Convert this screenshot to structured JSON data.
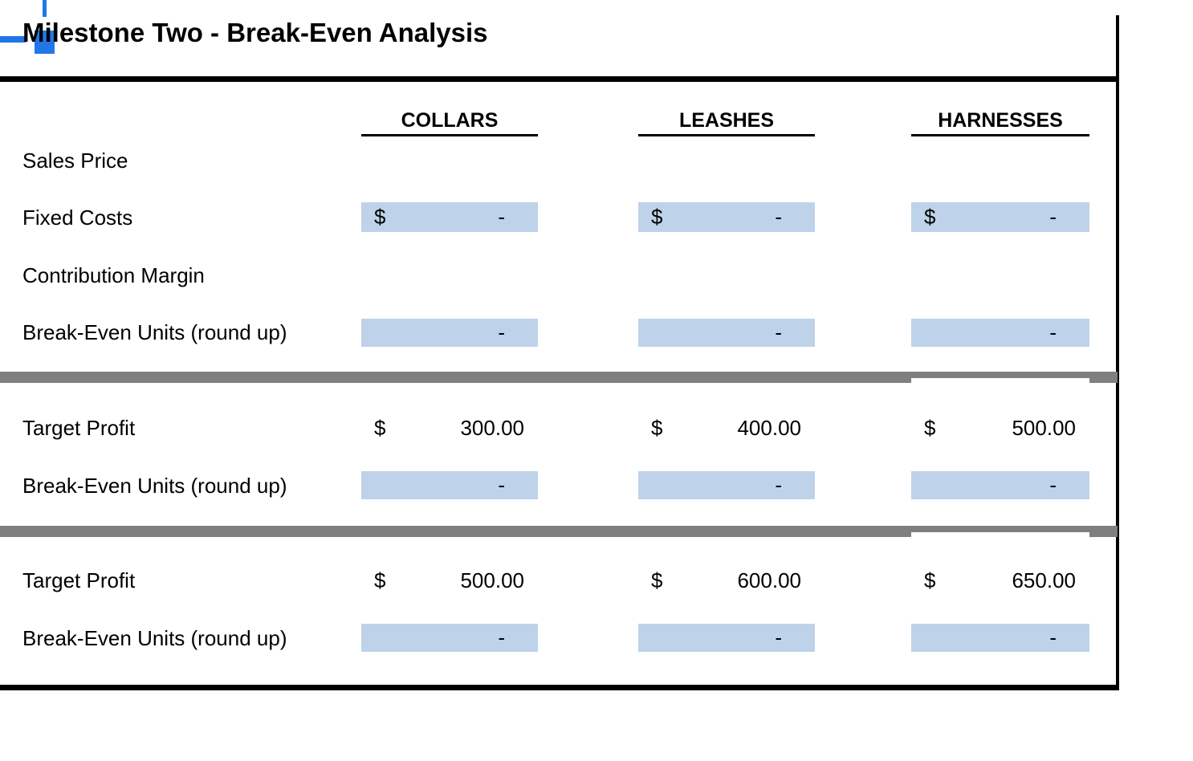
{
  "title": "Milestone Two - Break-Even Analysis",
  "currency": "$",
  "columns": [
    {
      "label": "COLLARS"
    },
    {
      "label": "LEASHES"
    },
    {
      "label": "HARNESSES"
    }
  ],
  "rows": {
    "sales_price": {
      "label": "Sales Price"
    },
    "fixed_costs": {
      "label": "Fixed Costs",
      "values": [
        "-",
        "-",
        "-"
      ]
    },
    "contribution_margin": {
      "label": "Contribution Margin"
    },
    "break_even_1": {
      "label": "Break-Even Units (round up)",
      "values": [
        "-",
        "-",
        "-"
      ]
    },
    "target_profit_1": {
      "label": "Target Profit",
      "values": [
        "300.00",
        "400.00",
        "500.00"
      ]
    },
    "break_even_2": {
      "label": "Break-Even Units (round up)",
      "values": [
        "-",
        "-",
        "-"
      ]
    },
    "target_profit_2": {
      "label": "Target Profit",
      "values": [
        "500.00",
        "600.00",
        "650.00"
      ]
    },
    "break_even_3": {
      "label": "Break-Even Units (round up)",
      "values": [
        "-",
        "-",
        "-"
      ]
    }
  },
  "colors": {
    "input_cell_fill": "#BED3EA",
    "separator_gray": "#7F7F7F",
    "anchor_blue": "#2277E8",
    "border_black": "#000000"
  }
}
